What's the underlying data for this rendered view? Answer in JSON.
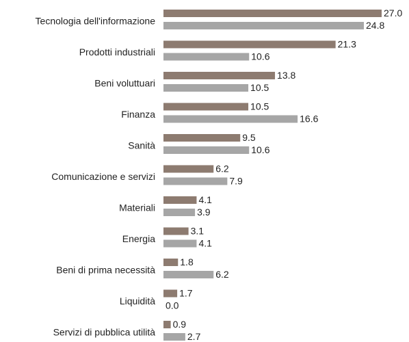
{
  "chart_data": {
    "type": "hbar",
    "categories": [
      "Tecnologia dell'informazione",
      "Prodotti industriali",
      "Beni voluttuari",
      "Finanza",
      "Sanità",
      "Comunicazione e servizi",
      "Materiali",
      "Energia",
      "Beni di prima necessità",
      "Liquidità",
      "Servizi di pubblica utilità"
    ],
    "series": [
      {
        "color": "#8d7b70",
        "values": [
          27.0,
          21.3,
          13.8,
          10.5,
          9.5,
          6.2,
          4.1,
          3.1,
          1.8,
          1.7,
          0.9
        ],
        "value_labels": [
          "27.0",
          "21.3",
          "13.8",
          "10.5",
          "9.5",
          "6.2",
          "4.1",
          "3.1",
          "1.8",
          "1.7",
          "0.9"
        ]
      },
      {
        "color": "#a6a6a6",
        "values": [
          24.8,
          10.6,
          10.5,
          16.6,
          10.6,
          7.9,
          3.9,
          4.1,
          6.2,
          0.0,
          2.7
        ],
        "value_labels": [
          "24.8",
          "10.6",
          "10.5",
          "16.6",
          "10.6",
          "7.9",
          "3.9",
          "4.1",
          "6.2",
          "0.0",
          "2.7"
        ]
      }
    ]
  }
}
